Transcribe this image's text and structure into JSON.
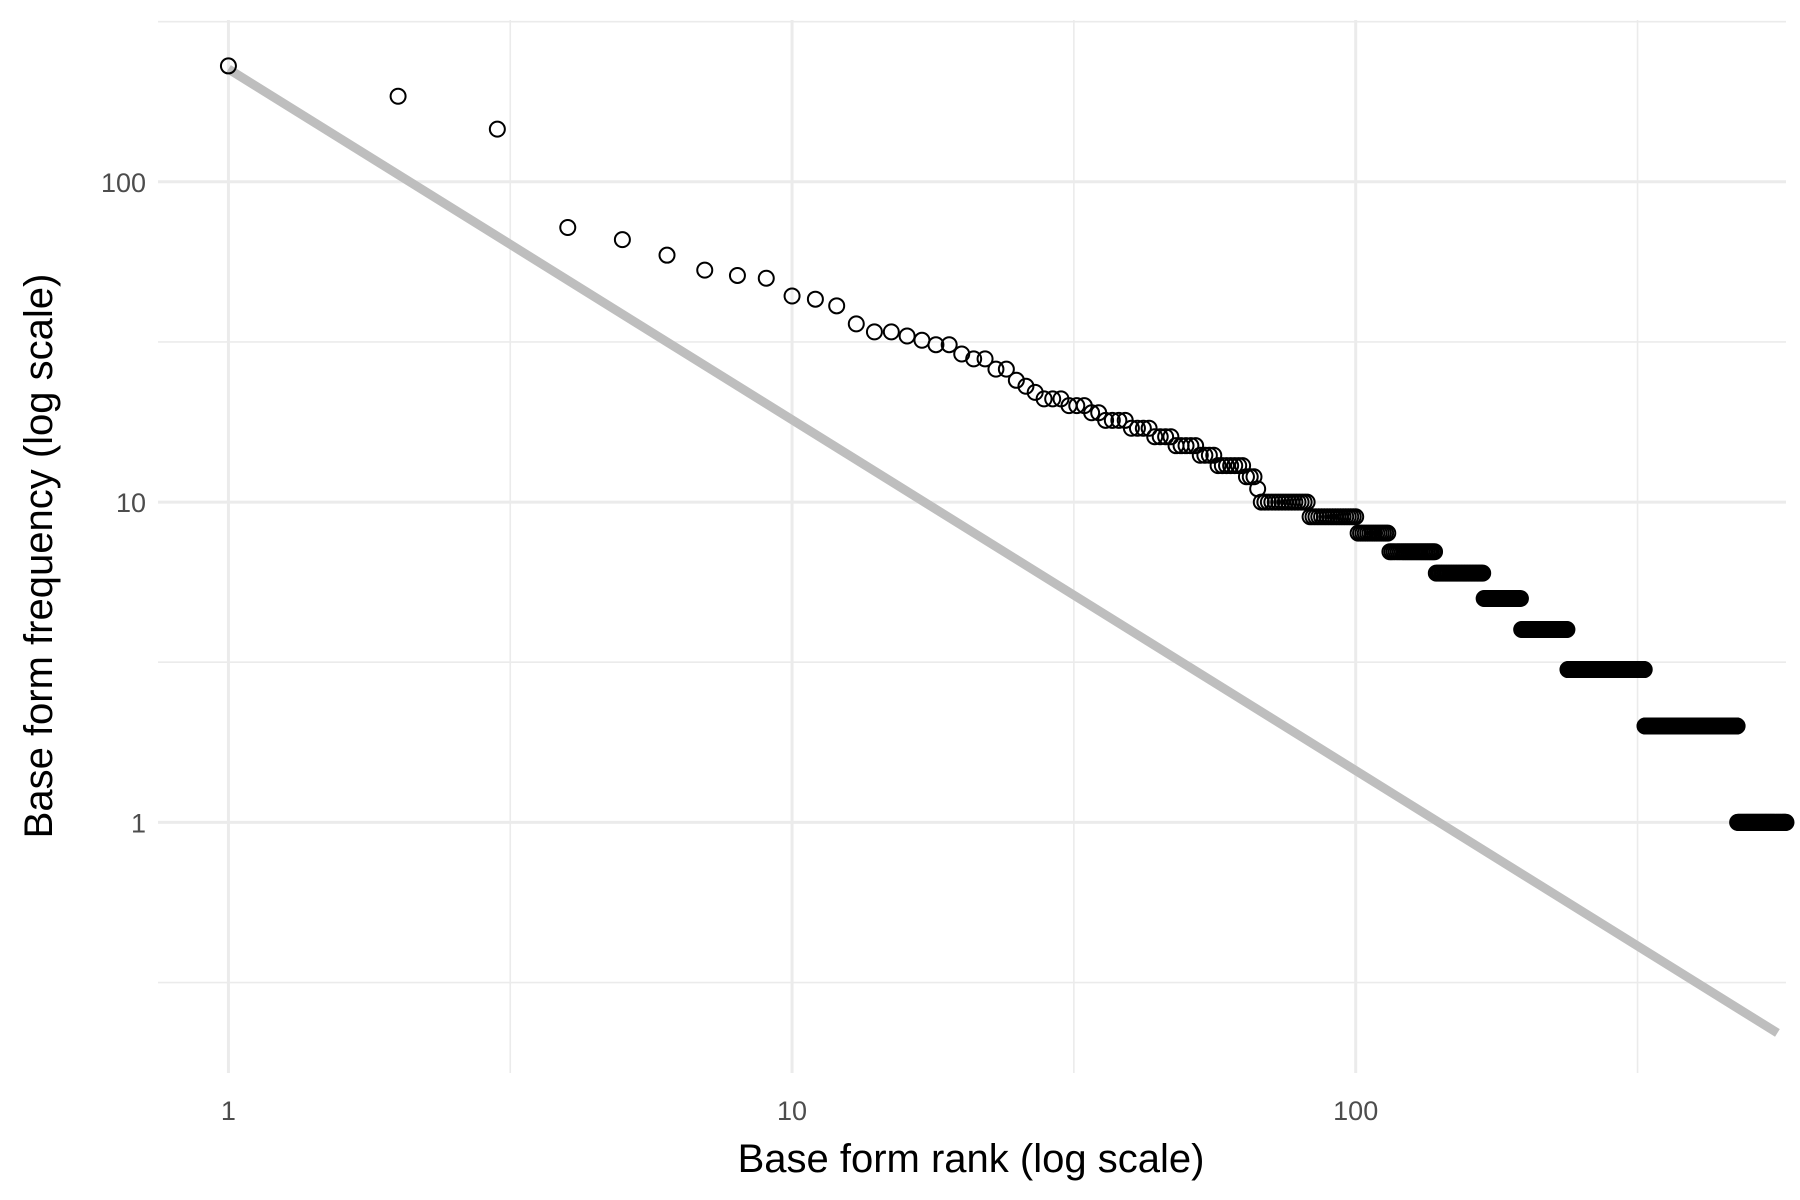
{
  "chart_data": {
    "type": "scatter",
    "title": "",
    "xlabel": "Base form rank (log scale)",
    "ylabel": "Base form frequency (log scale)",
    "x_scale": "log10",
    "y_scale": "log10",
    "xlim": [
      0.75,
      580
    ],
    "ylim": [
      0.165,
      320
    ],
    "grid": true,
    "legend": "none",
    "x_ticks": [
      1,
      10,
      100
    ],
    "x_tick_labels": [
      "1",
      "10",
      "100"
    ],
    "y_ticks": [
      1,
      10,
      100
    ],
    "y_tick_labels": [
      "1",
      "10",
      "100"
    ],
    "reference_line": {
      "points": [
        [
          1,
          225
        ],
        [
          560,
          0.22
        ]
      ],
      "color": "#bebebe"
    },
    "series": [
      {
        "points": [
          [
            1,
            230
          ],
          [
            2,
            185
          ],
          [
            3,
            146
          ],
          [
            4,
            72
          ],
          [
            5,
            66
          ],
          [
            6,
            59
          ],
          [
            7,
            53
          ],
          [
            8,
            51
          ],
          [
            9,
            50
          ],
          [
            10,
            44
          ],
          [
            11,
            43
          ],
          [
            12,
            41
          ],
          [
            13,
            36
          ],
          [
            14,
            34
          ],
          [
            15,
            34
          ],
          [
            16,
            33
          ],
          [
            17,
            32
          ],
          [
            18,
            31
          ],
          [
            19,
            31
          ],
          [
            20,
            29
          ],
          [
            21,
            28
          ],
          [
            22,
            28
          ],
          [
            23,
            26
          ],
          [
            24,
            26
          ],
          [
            25,
            24
          ],
          [
            26,
            23
          ],
          [
            27,
            22
          ],
          [
            28,
            21
          ],
          [
            29,
            21
          ],
          [
            30,
            21
          ],
          [
            31,
            20
          ],
          [
            32,
            20
          ],
          [
            33,
            20
          ],
          [
            34,
            19
          ],
          [
            35,
            19
          ],
          [
            36,
            18
          ],
          [
            37,
            18
          ],
          [
            38,
            18
          ],
          [
            39,
            18
          ],
          [
            40,
            17
          ],
          [
            41,
            17
          ],
          [
            42,
            17
          ],
          [
            43,
            17
          ],
          [
            44,
            16
          ],
          [
            45,
            16
          ],
          [
            46,
            16
          ],
          [
            47,
            16
          ],
          [
            48,
            15
          ],
          [
            49,
            15
          ],
          [
            50,
            15
          ],
          [
            51,
            15
          ],
          [
            52,
            15
          ],
          [
            53,
            14
          ],
          [
            54,
            14
          ],
          [
            55,
            14
          ],
          [
            56,
            14
          ],
          [
            57,
            13
          ],
          [
            58,
            13
          ],
          [
            59,
            13
          ],
          [
            60,
            13
          ],
          [
            61,
            13
          ],
          [
            62,
            13
          ],
          [
            63,
            13
          ],
          [
            64,
            12
          ],
          [
            65,
            12
          ],
          [
            66,
            12
          ],
          [
            67,
            11
          ]
        ]
      }
    ],
    "steps": [
      {
        "y": 10,
        "x_from": 68,
        "x_to": 82
      },
      {
        "y": 9,
        "x_from": 83,
        "x_to": 100
      },
      {
        "y": 8,
        "x_from": 101,
        "x_to": 114
      },
      {
        "y": 7,
        "x_from": 115,
        "x_to": 138
      },
      {
        "y": 6,
        "x_from": 139,
        "x_to": 168
      },
      {
        "y": 5,
        "x_from": 169,
        "x_to": 196
      },
      {
        "y": 4,
        "x_from": 197,
        "x_to": 237
      },
      {
        "y": 3,
        "x_from": 238,
        "x_to": 325
      },
      {
        "y": 2,
        "x_from": 326,
        "x_to": 475
      },
      {
        "y": 1,
        "x_from": 476,
        "x_to": 1600
      }
    ]
  }
}
